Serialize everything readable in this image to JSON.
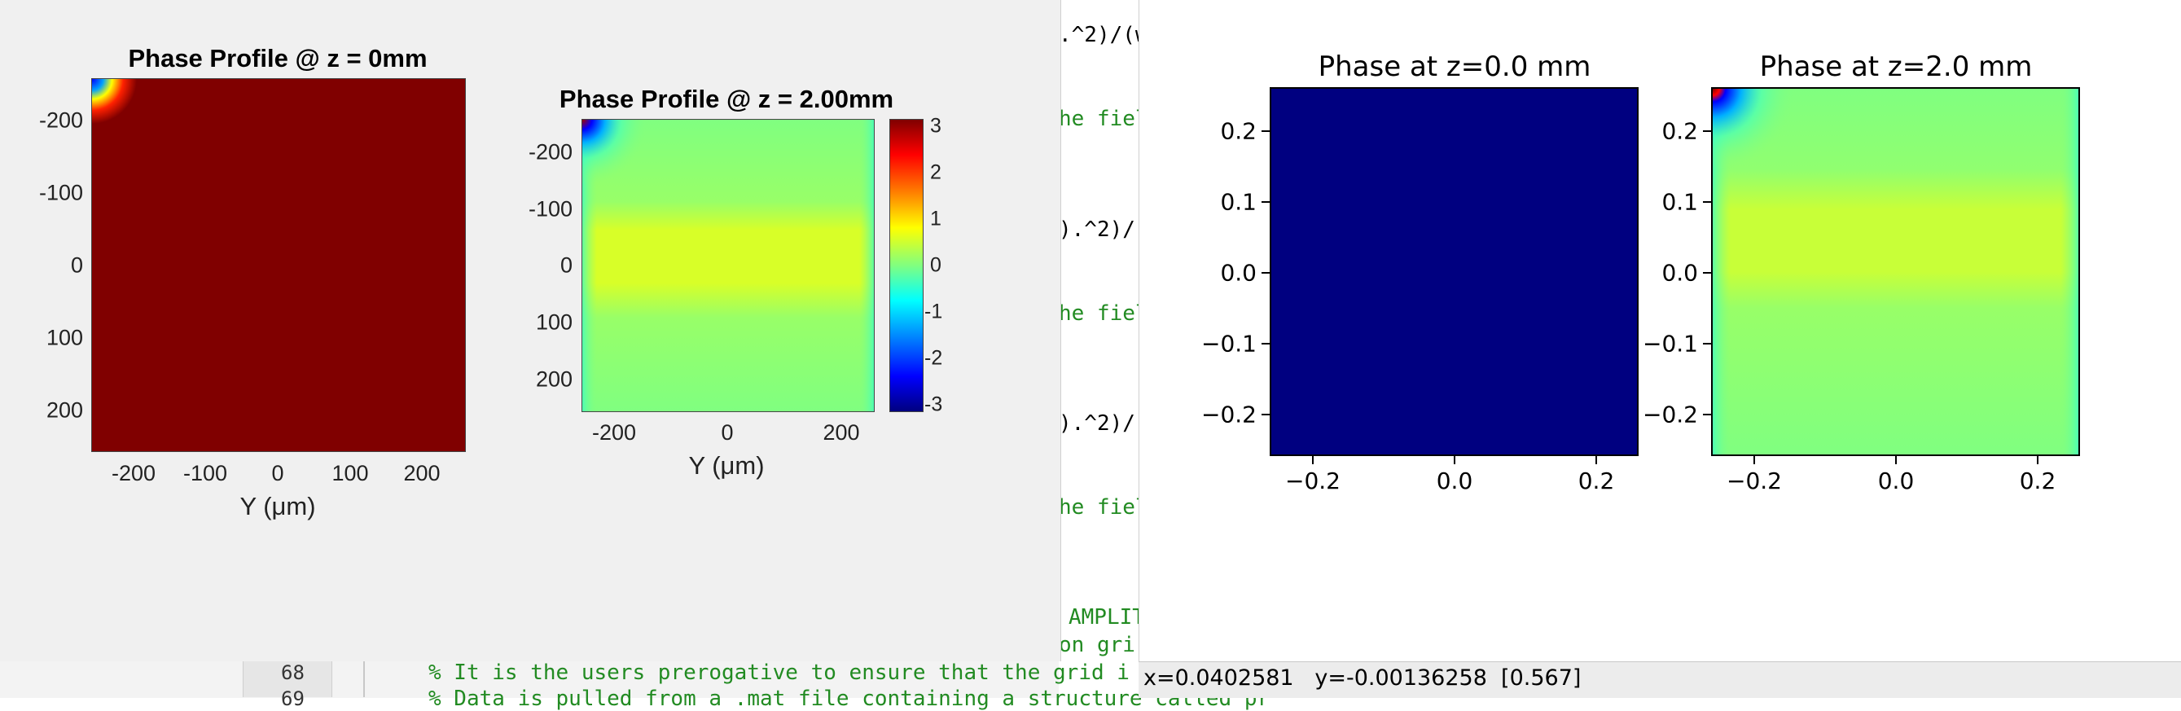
{
  "editor": {
    "fragments": [
      {
        "text": ".^2)/(w",
        "cls": ""
      },
      {
        "text": "he fiel",
        "cls": "cmt"
      },
      {
        "text": ").^2)/(",
        "cls": ""
      },
      {
        "text": "he fiel",
        "cls": "cmt"
      },
      {
        "text": ").^2)/(",
        "cls": ""
      },
      {
        "text": "he fiel",
        "cls": "cmt"
      },
      {
        "text": "AMPLIT",
        "cls": "cmt"
      },
      {
        "text": "on gri",
        "cls": "cmt"
      }
    ],
    "line_68_number": "68",
    "line_69_number": "69",
    "line_68_text": "% It is the users prerogative to ensure that the grid i",
    "line_69_text": "% Data is pulled from a .mat file containing a structure called pr"
  },
  "matlab": {
    "plot1": {
      "title": "Phase Profile @ z = 0mm",
      "xlabel": "Y (μm)",
      "yticks": [
        "-200",
        "-100",
        "0",
        "100",
        "200"
      ],
      "xticks": [
        "-200",
        "-100",
        "0",
        "100",
        "200"
      ]
    },
    "plot2": {
      "title": "Phase Profile @ z = 2.00mm",
      "xlabel": "Y (μm)",
      "yticks": [
        "-200",
        "-100",
        "0",
        "100",
        "200"
      ],
      "xticks": [
        "-200",
        "0",
        "200"
      ],
      "colorbar_ticks": [
        "3",
        "2",
        "1",
        "0",
        "-1",
        "-2",
        "-3"
      ]
    },
    "colors": {
      "dark_red": "#800000",
      "field_green": "#80ff80",
      "band_yellow": "#d8ff28"
    }
  },
  "mpl": {
    "plot1": {
      "title": "Phase at z=0.0 mm",
      "yticks": [
        "0.2",
        "0.1",
        "0.0",
        "−0.1",
        "−0.2"
      ],
      "xticks": [
        "−0.2",
        "0.0",
        "0.2"
      ]
    },
    "plot2": {
      "title": "Phase at z=2.0 mm",
      "yticks": [
        "0.2",
        "0.1",
        "0.0",
        "−0.1",
        "−0.2"
      ],
      "xticks": [
        "−0.2",
        "0.0",
        "0.2"
      ]
    },
    "colors": {
      "navy": "#000080"
    },
    "status": "x=0.0402581   y=-0.00136258  [0.567]"
  }
}
